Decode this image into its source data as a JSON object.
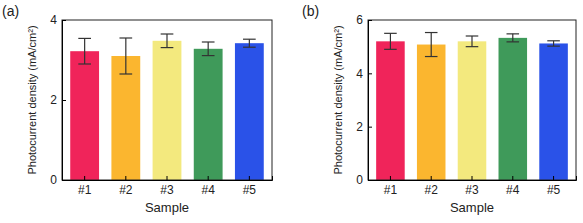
{
  "chart_data": [
    {
      "type": "bar",
      "title": "(a)",
      "categories": [
        "#1",
        "#2",
        "#3",
        "#4",
        "#5"
      ],
      "values": [
        3.22,
        3.1,
        3.48,
        3.28,
        3.42
      ],
      "errors": [
        0.32,
        0.45,
        0.17,
        0.17,
        0.1
      ],
      "colors": [
        "#f0245a",
        "#fbb62f",
        "#f3e97e",
        "#3f9a5a",
        "#2a52e8"
      ],
      "x_label": "Sample",
      "y_label": "Photocurrent density (mA/cm²)",
      "ylim": [
        0,
        4
      ],
      "yticks": [
        0,
        2,
        4
      ]
    },
    {
      "type": "bar",
      "title": "(b)",
      "categories": [
        "#1",
        "#2",
        "#3",
        "#4",
        "#5"
      ],
      "values": [
        5.2,
        5.08,
        5.2,
        5.33,
        5.12
      ],
      "errors": [
        0.3,
        0.45,
        0.2,
        0.15,
        0.1
      ],
      "colors": [
        "#f0245a",
        "#fbb62f",
        "#f3e97e",
        "#3f9a5a",
        "#2a52e8"
      ],
      "x_label": "Sample",
      "y_label": "Photocurrent density (mA/cm²)",
      "ylim": [
        0,
        6
      ],
      "yticks": [
        0,
        2,
        4,
        6
      ]
    }
  ]
}
